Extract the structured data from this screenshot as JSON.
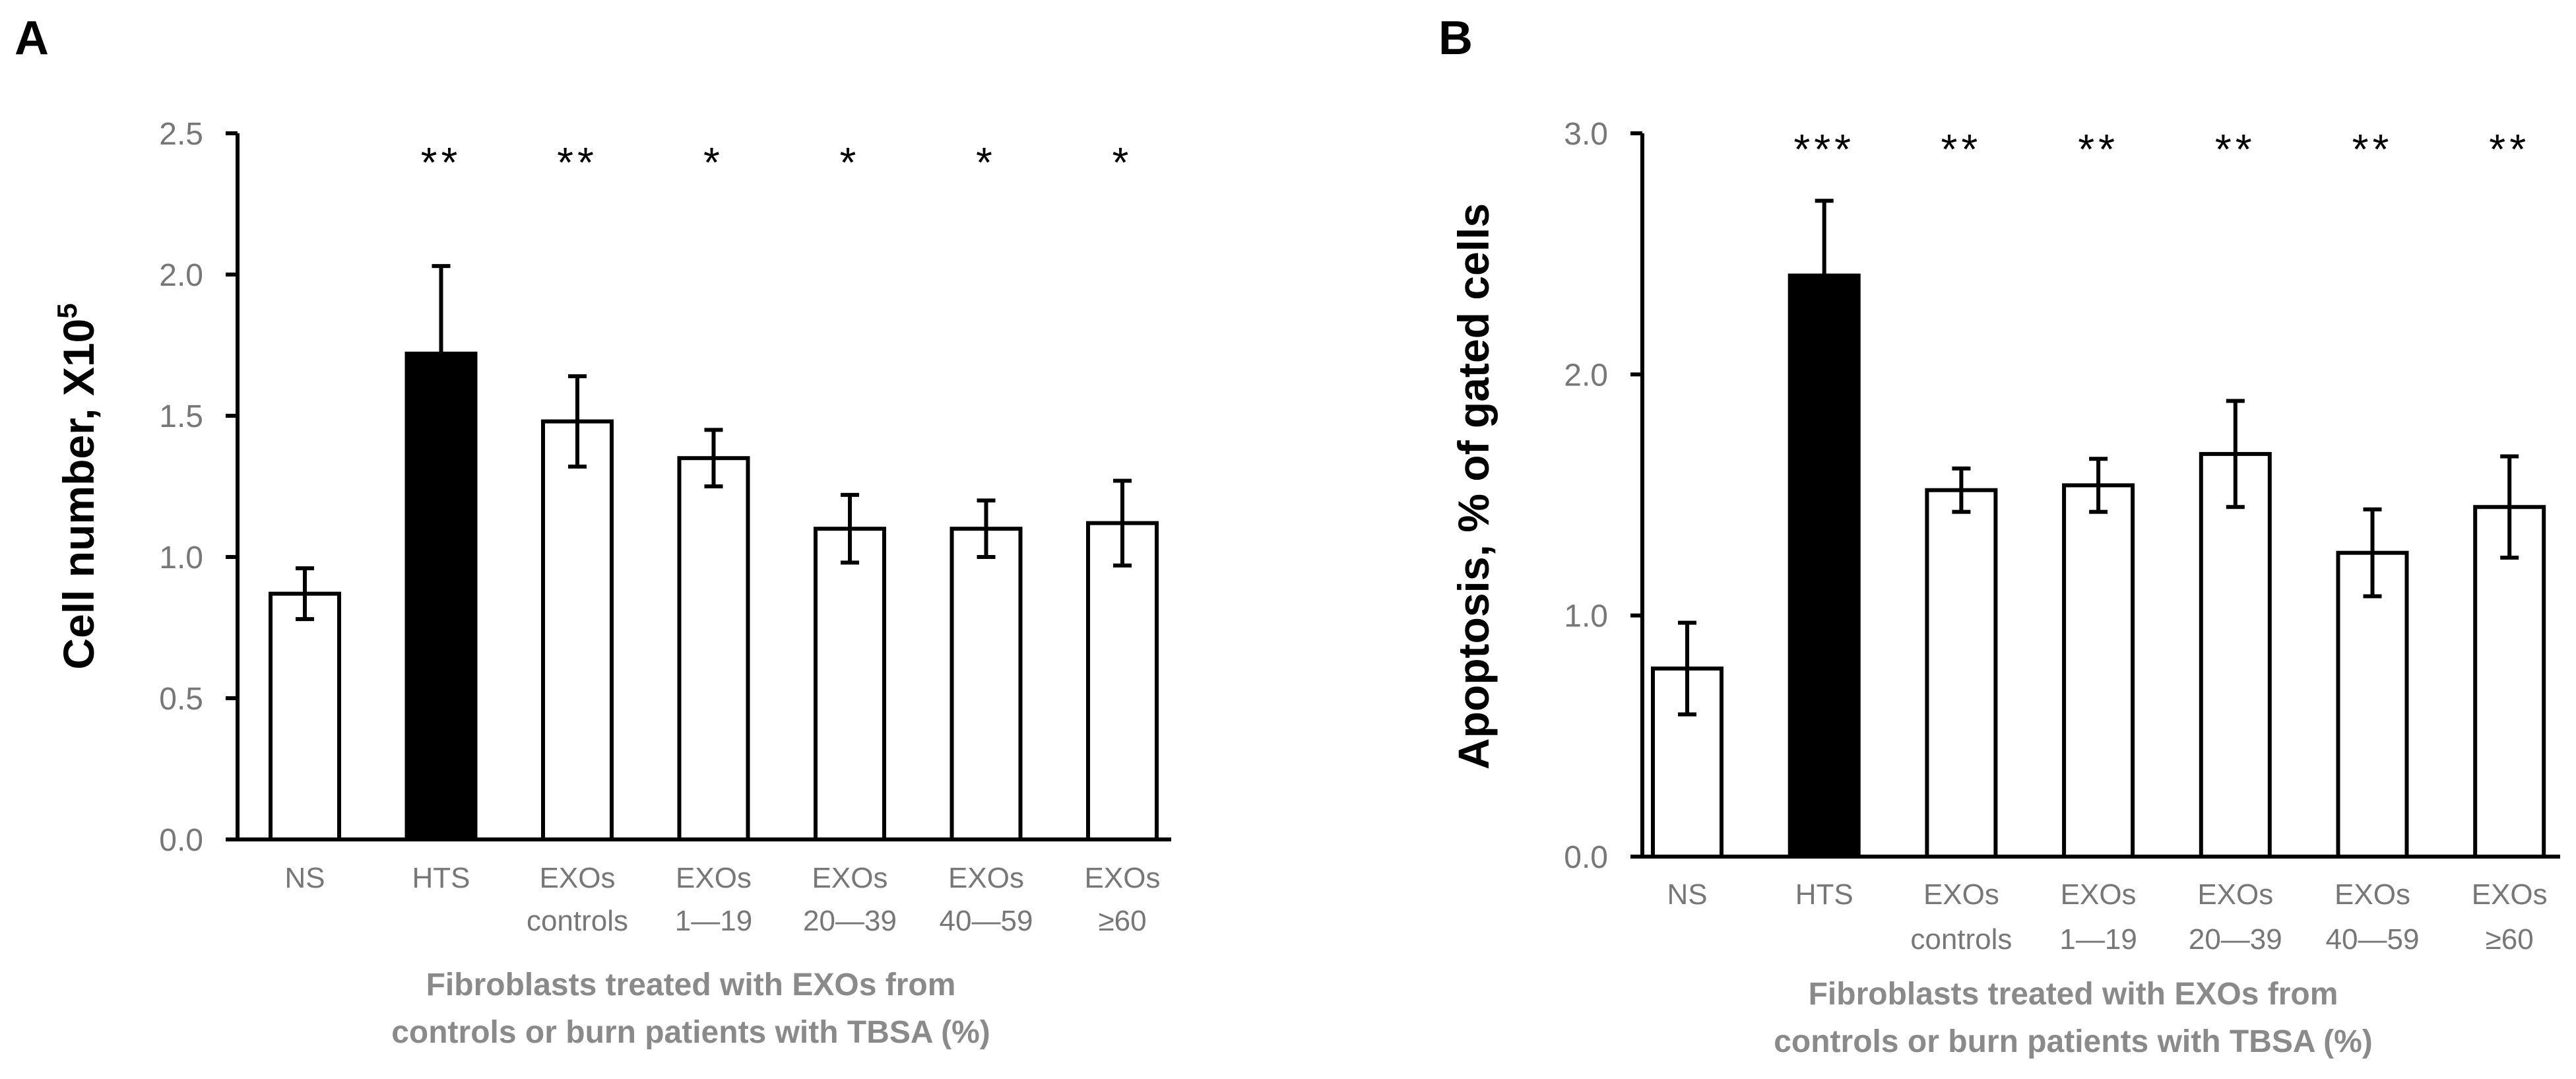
{
  "chart_data": [
    {
      "panel": "A",
      "type": "bar",
      "title": "",
      "categories": [
        [
          "NS"
        ],
        [
          "HTS"
        ],
        [
          "EXOs",
          "controls"
        ],
        [
          "EXOs",
          "1—19"
        ],
        [
          "EXOs",
          "20—39"
        ],
        [
          "EXOs",
          "40—59"
        ],
        [
          "EXOs",
          "≥60"
        ]
      ],
      "values": [
        0.87,
        1.72,
        1.48,
        1.35,
        1.1,
        1.1,
        1.12
      ],
      "errors": [
        0.09,
        0.31,
        0.16,
        0.1,
        0.12,
        0.1,
        0.15
      ],
      "bar_colors": [
        "#ffffff",
        "#000000",
        "#ffffff",
        "#ffffff",
        "#ffffff",
        "#ffffff",
        "#ffffff"
      ],
      "significance": [
        "",
        "**",
        "**",
        "*",
        "*",
        "*",
        "*"
      ],
      "ylabel_main": "Cell number, X10",
      "ylabel_sup": "5",
      "xlabel": [
        "Fibroblasts treated with  EXOs from",
        "controls  or burn  patients with TBSA (%)"
      ],
      "ylim": [
        0,
        2.5
      ],
      "yticks": [
        "0.0",
        "0.5",
        "1.0",
        "1.5",
        "2.0",
        "2.5"
      ],
      "grid": false
    },
    {
      "panel": "B",
      "type": "bar",
      "title": "",
      "categories": [
        [
          "NS"
        ],
        [
          "HTS"
        ],
        [
          "EXOs",
          "controls"
        ],
        [
          "EXOs",
          "1—19"
        ],
        [
          "EXOs",
          "20—39"
        ],
        [
          "EXOs",
          "40—59"
        ],
        [
          "EXOs",
          "≥60"
        ]
      ],
      "values": [
        0.78,
        2.41,
        1.52,
        1.54,
        1.67,
        1.26,
        1.45
      ],
      "errors": [
        0.19,
        0.31,
        0.09,
        0.11,
        0.22,
        0.18,
        0.21
      ],
      "bar_colors": [
        "#ffffff",
        "#000000",
        "#ffffff",
        "#ffffff",
        "#ffffff",
        "#ffffff",
        "#ffffff"
      ],
      "significance": [
        "",
        "***",
        "**",
        "**",
        "**",
        "**",
        "**"
      ],
      "ylabel_main": "Apoptosis, % of gated cells",
      "ylabel_sup": "",
      "xlabel": [
        "Fibroblasts treated with  EXOs from",
        "controls  or burn  patients with TBSA (%)"
      ],
      "ylim": [
        0,
        3.0
      ],
      "yticks": [
        "0.0",
        "1.0",
        "2.0",
        "3.0"
      ],
      "grid": false
    }
  ],
  "colors": {
    "axis": "#000000",
    "tick_text": "#777777",
    "xlabel_text": "#8a8a8a"
  }
}
